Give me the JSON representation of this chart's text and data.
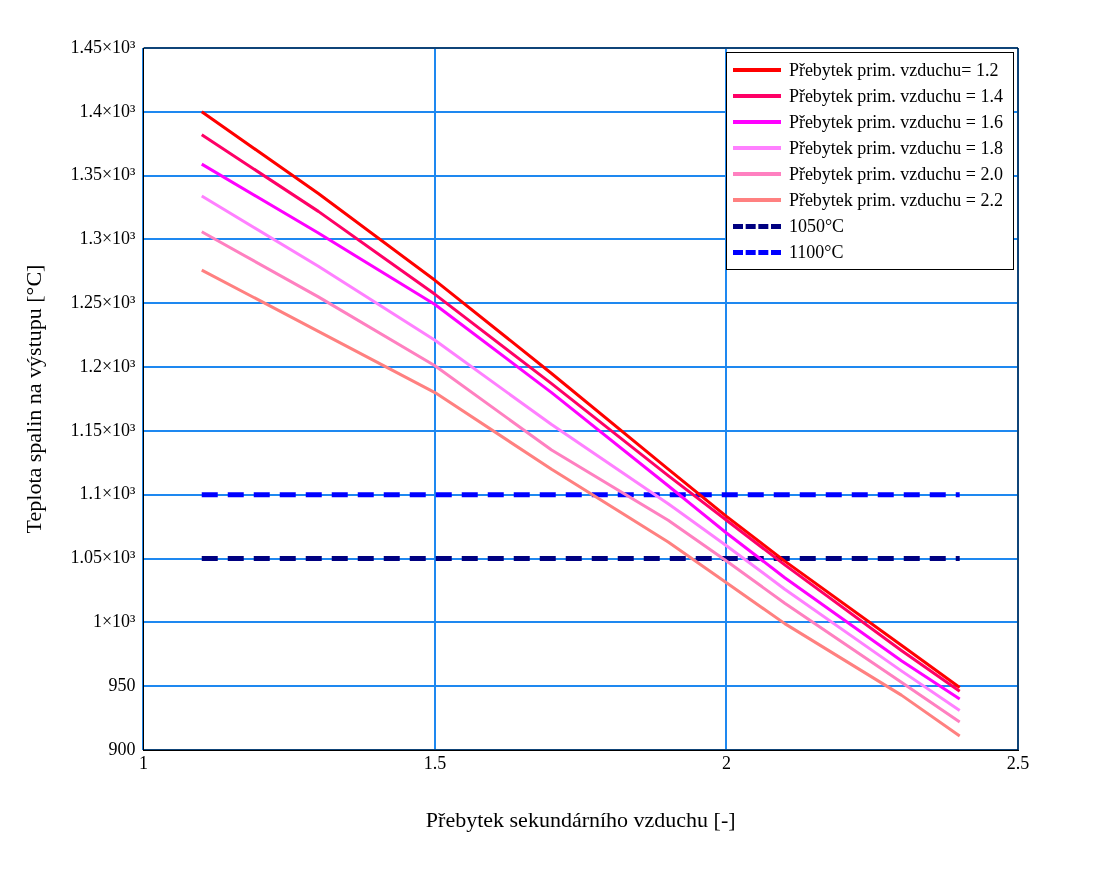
{
  "chart_data": {
    "type": "line",
    "xlabel": "Přebytek sekundárního vzduchu [-]",
    "ylabel": "Teplota spalin na výstupu [°C]",
    "x": [
      1.1,
      1.3,
      1.5,
      1.7,
      1.9,
      2.0,
      2.1,
      2.3,
      2.4
    ],
    "xlim": [
      1,
      2.5
    ],
    "xticks": [
      1,
      1.5,
      2,
      2.5
    ],
    "ylim": [
      900,
      1450
    ],
    "yticks": [
      900,
      950,
      {
        "value": 1000,
        "label": "1×10³"
      },
      {
        "value": 1050,
        "label": "1.05×10³"
      },
      {
        "value": 1100,
        "label": "1.1×10³"
      },
      {
        "value": 1150,
        "label": "1.15×10³"
      },
      {
        "value": 1200,
        "label": "1.2×10³"
      },
      {
        "value": 1250,
        "label": "1.25×10³"
      },
      {
        "value": 1300,
        "label": "1.3×10³"
      },
      {
        "value": 1350,
        "label": "1.35×10³"
      },
      {
        "value": 1400,
        "label": "1.4×10³"
      },
      {
        "value": 1450,
        "label": "1.45×10³"
      }
    ],
    "grid": true,
    "legend": "top right",
    "line_style": "solid",
    "marker": "none",
    "series": [
      {
        "name": "Přebytek prim. vzduchu= 1.2",
        "color": "#ff0000",
        "values": [
          1400,
          1336,
          1268,
          1195,
          1120,
          1083,
          1048,
          982,
          949
        ]
      },
      {
        "name": "Přebytek prim. vzduchu = 1.4",
        "color": "#ff0066",
        "values": [
          1382,
          1322,
          1257,
          1187,
          1115,
          1080,
          1045,
          978,
          946
        ]
      },
      {
        "name": "Přebytek prim. vzduchu = 1.6",
        "color": "#ff00ff",
        "values": [
          1359,
          1305,
          1249,
          1180,
          1107,
          1070,
          1035,
          970,
          940
        ]
      },
      {
        "name": "Přebytek prim. vzduchu = 1.8",
        "color": "#ff80ff",
        "values": [
          1334,
          1279,
          1221,
          1155,
          1093,
          1060,
          1026,
          962,
          931
        ]
      },
      {
        "name": "Přebytek prim. vzduchu = 2.0",
        "color": "#ff80c0",
        "values": [
          1306,
          1255,
          1201,
          1135,
          1080,
          1048,
          1015,
          953,
          922
        ]
      },
      {
        "name": "Přebytek prim. vzduchu = 2.2",
        "color": "#ff8080",
        "values": [
          1276,
          1228,
          1180,
          1120,
          1063,
          1031,
          999,
          943,
          911
        ]
      },
      {
        "name": "1050°C",
        "color": "#000080",
        "line_style": "dashed",
        "values": [
          1050,
          1050,
          1050,
          1050,
          1050,
          1050,
          1050,
          1050,
          1050
        ]
      },
      {
        "name": "1100°C",
        "color": "#0000ff",
        "line_style": "dashed",
        "values": [
          1100,
          1100,
          1100,
          1100,
          1100,
          1100,
          1100,
          1100,
          1100
        ]
      }
    ]
  }
}
